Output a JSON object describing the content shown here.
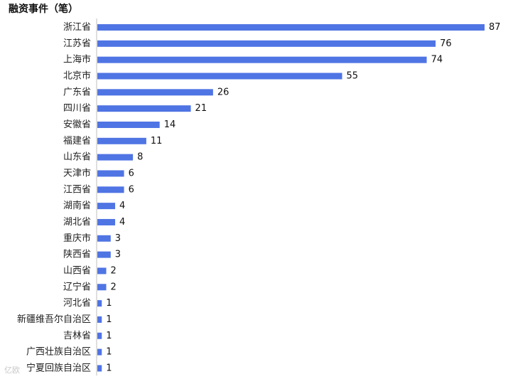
{
  "chart_data": {
    "type": "bar",
    "orientation": "horizontal",
    "title": "融资事件（笔）",
    "categories": [
      "浙江省",
      "江苏省",
      "上海市",
      "北京市",
      "广东省",
      "四川省",
      "安徽省",
      "福建省",
      "山东省",
      "天津市",
      "江西省",
      "湖南省",
      "湖北省",
      "重庆市",
      "陕西省",
      "山西省",
      "辽宁省",
      "河北省",
      "新疆维吾尔自治区",
      "吉林省",
      "广西壮族自治区",
      "宁夏回族自治区"
    ],
    "values": [
      87,
      76,
      74,
      55,
      26,
      21,
      14,
      11,
      8,
      6,
      6,
      4,
      4,
      3,
      3,
      2,
      2,
      1,
      1,
      1,
      1,
      1
    ],
    "xlim": [
      0,
      87
    ],
    "bar_color": "#4f74e3",
    "grid": false,
    "data_labels": true
  },
  "watermark": "亿欧"
}
